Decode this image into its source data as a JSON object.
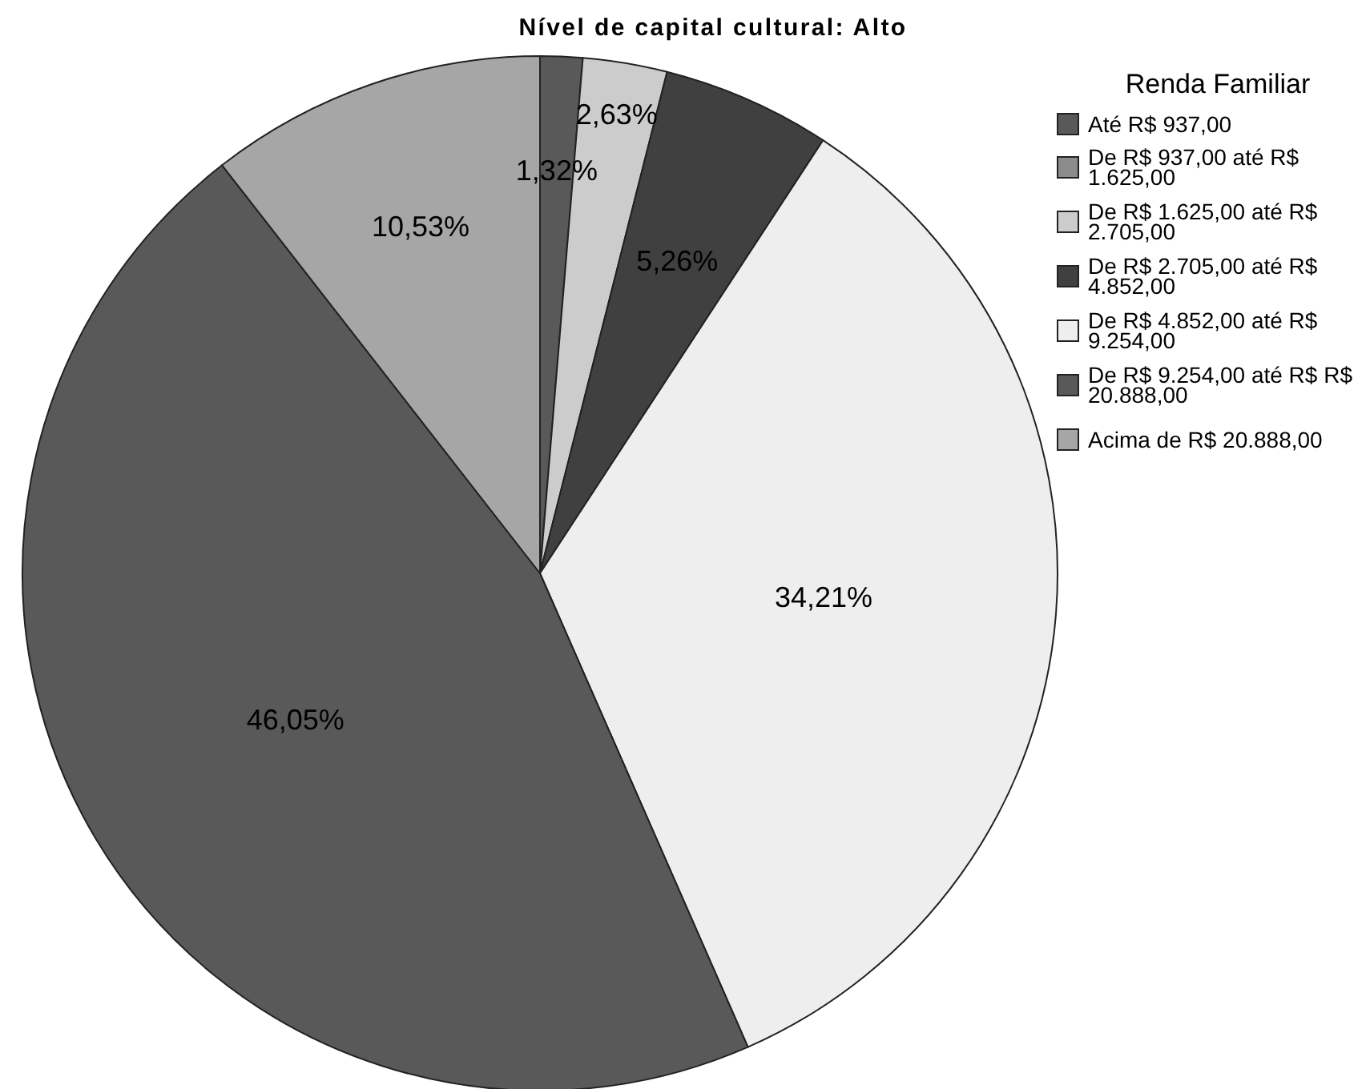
{
  "chart_data": {
    "type": "pie",
    "title": "Nível de capital cultural: Alto",
    "legend_title": "Renda Familiar",
    "categories": [
      "Até R$ 937,00",
      "De R$ 937,00 até R$ 1.625,00",
      "De R$ 1.625,00 até R$ 2.705,00",
      "De R$ 2.705,00 até R$ 4.852,00",
      "De R$ 4.852,00 até R$ 9.254,00",
      "De R$ 9.254,00 até R$ R$ 20.888,00",
      "Acima de R$ 20.888,00"
    ],
    "values": [
      1.32,
      0,
      2.63,
      5.26,
      34.21,
      46.05,
      10.53
    ],
    "colors": [
      "#595959",
      "#8c8c8c",
      "#cccccc",
      "#404040",
      "#eeeeee",
      "#595959",
      "#a6a6a6"
    ],
    "value_labels": [
      "1,32%",
      null,
      "2,63%",
      "5,26%",
      "34,21%",
      "46,05%",
      "10,53%"
    ],
    "legend": "top right"
  }
}
